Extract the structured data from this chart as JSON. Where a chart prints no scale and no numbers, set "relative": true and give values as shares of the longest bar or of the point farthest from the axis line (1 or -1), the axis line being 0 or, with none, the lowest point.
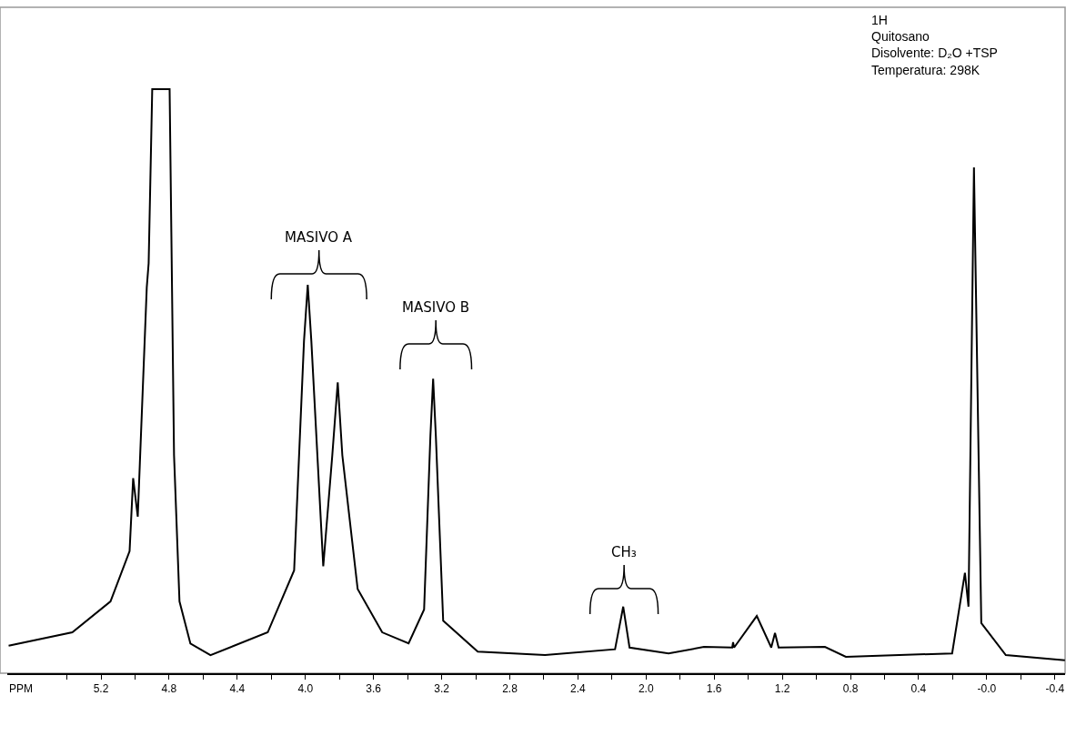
{
  "chart_data": {
    "type": "line",
    "relative": true,
    "xlabel": "PPM",
    "x": [
      5.742,
      5.368,
      5.144,
      5.032,
      5.011,
      4.984,
      4.931,
      4.92,
      4.899,
      4.797,
      4.771,
      4.739,
      4.675,
      4.557,
      4.221,
      4.066,
      4.008,
      3.986,
      3.965,
      3.895,
      3.842,
      3.81,
      3.783,
      3.693,
      3.549,
      3.394,
      3.303,
      3.266,
      3.25,
      3.234,
      3.191,
      2.988,
      2.593,
      2.182,
      2.134,
      2.097,
      1.868,
      1.66,
      1.494,
      1.489,
      1.483,
      1.35,
      1.265,
      1.243,
      1.222,
      0.95,
      0.827,
      0.203,
      0.128,
      0.107,
      0.075,
      0.032,
      -0.112,
      -0.459
    ],
    "series": [
      {
        "color": "#000000",
        "values": [
          0.047,
          0.07,
          0.123,
          0.209,
          0.334,
          0.268,
          0.661,
          0.702,
          1.0,
          1.0,
          0.373,
          0.123,
          0.051,
          0.031,
          0.07,
          0.176,
          0.569,
          0.665,
          0.569,
          0.183,
          0.373,
          0.498,
          0.373,
          0.144,
          0.07,
          0.051,
          0.109,
          0.406,
          0.504,
          0.406,
          0.09,
          0.037,
          0.031,
          0.041,
          0.114,
          0.044,
          0.034,
          0.045,
          0.044,
          0.053,
          0.044,
          0.098,
          0.044,
          0.069,
          0.044,
          0.045,
          0.028,
          0.034,
          0.172,
          0.114,
          0.866,
          0.086,
          0.031,
          0.022
        ]
      }
    ],
    "xlim": [
      5.75,
      -0.46
    ],
    "xticks": [
      {
        "value": 5.4,
        "label": null
      },
      5.2,
      {
        "value": 5.0,
        "label": null
      },
      4.8,
      {
        "value": 4.6,
        "label": null
      },
      4.4,
      {
        "value": 4.2,
        "label": null
      },
      {
        "value": 4.0,
        "label": "4.0"
      },
      {
        "value": 3.8,
        "label": null
      },
      3.6,
      {
        "value": 3.4,
        "label": null
      },
      3.2,
      {
        "value": 3.0,
        "label": null
      },
      2.8,
      {
        "value": 2.6,
        "label": null
      },
      2.4,
      {
        "value": 2.2,
        "label": null
      },
      {
        "value": 2.0,
        "label": "2.0"
      },
      {
        "value": 1.8,
        "label": null
      },
      1.6,
      {
        "value": 1.4,
        "label": null
      },
      1.2,
      {
        "value": 1.0,
        "label": null
      },
      0.8,
      {
        "value": 0.6,
        "label": null
      },
      0.4,
      {
        "value": 0.2,
        "label": null
      },
      {
        "value": 0,
        "label": "-0.0"
      },
      {
        "value": -0.2,
        "label": null
      },
      -0.4
    ],
    "marker": "none",
    "line_style": "solid",
    "annotations": [
      "MASIVO A",
      "MASIVO B",
      "CH₃",
      "1H",
      "Quitosano",
      "Disolvente: D₂O +TSP",
      "Temperatura: 298K"
    ]
  }
}
